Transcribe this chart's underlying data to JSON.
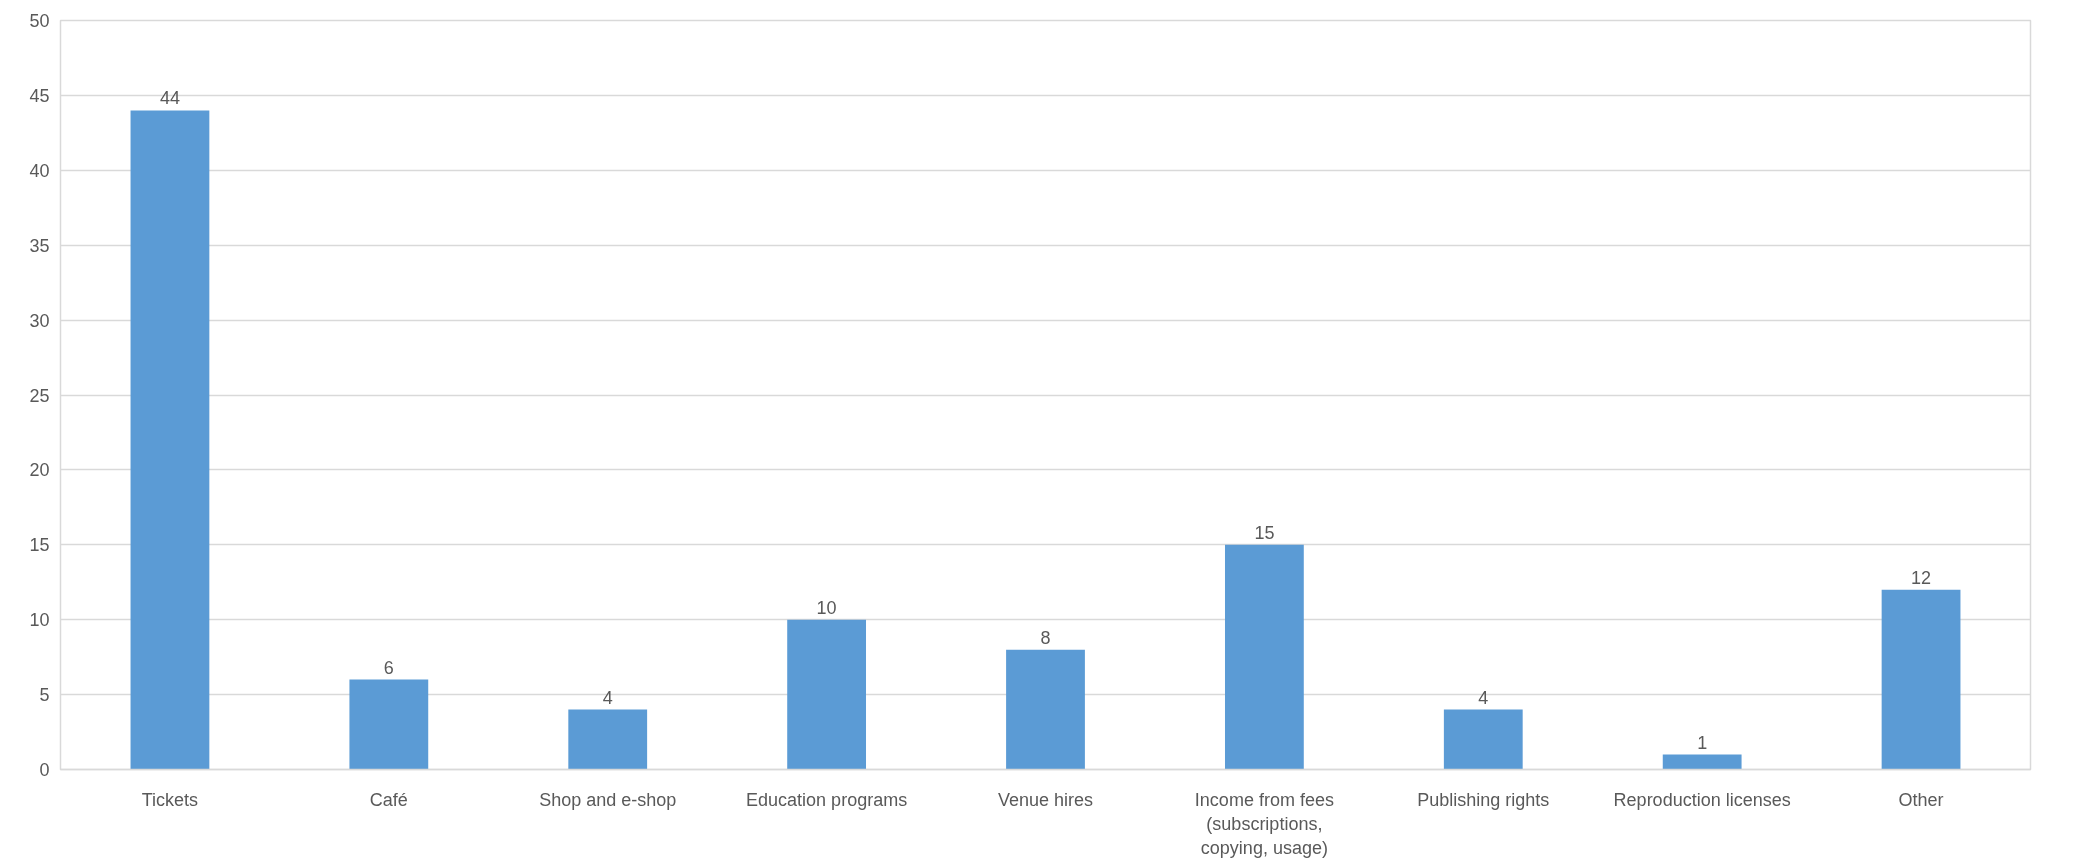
{
  "chart_data": {
    "type": "bar",
    "categories": [
      "Tickets",
      "Café",
      "Shop and e-shop",
      "Education programs",
      "Venue hires",
      "Income from fees (subscriptions, copying, usage)",
      "Publishing rights",
      "Reproduction licenses",
      "Other"
    ],
    "values": [
      44,
      6,
      4,
      10,
      8,
      15,
      4,
      1,
      12
    ],
    "color": "#5b9bd5",
    "ylim": [
      0,
      50
    ],
    "yticks": [
      0,
      5,
      10,
      15,
      20,
      25,
      30,
      35,
      40,
      45,
      50
    ],
    "grid": "y",
    "data_labels": true
  }
}
